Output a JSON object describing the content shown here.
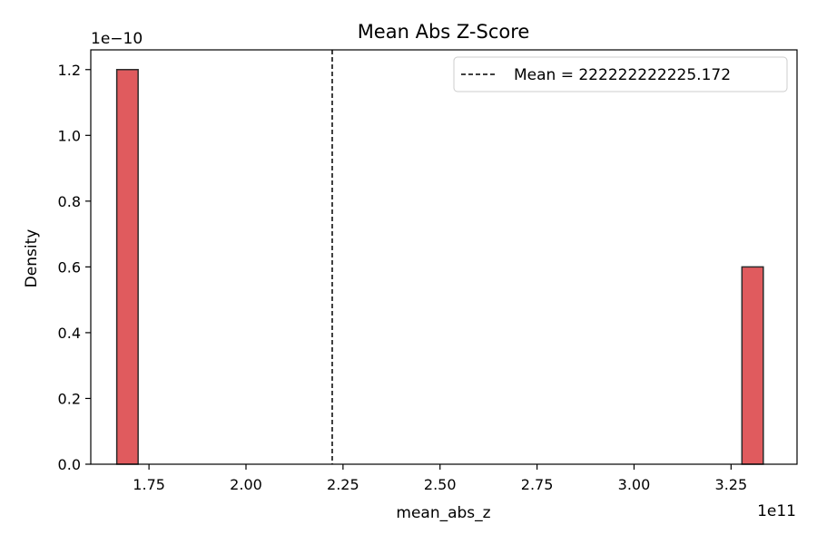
{
  "chart_data": {
    "type": "histogram",
    "title": "Mean Abs Z-Score",
    "xlabel": "mean_abs_z",
    "ylabel": "Density",
    "x_offset_label": "1e11",
    "y_offset_label": "1e−10",
    "xlim": [
      1.6,
      3.42
    ],
    "ylim": [
      0,
      1.26
    ],
    "x_ticks": [
      {
        "value": 1.75,
        "label": "1.75"
      },
      {
        "value": 2.0,
        "label": "2.00"
      },
      {
        "value": 2.25,
        "label": "2.25"
      },
      {
        "value": 2.5,
        "label": "2.50"
      },
      {
        "value": 2.75,
        "label": "2.75"
      },
      {
        "value": 3.0,
        "label": "3.00"
      },
      {
        "value": 3.25,
        "label": "3.25"
      }
    ],
    "y_ticks": [
      {
        "value": 0.0,
        "label": "0.0"
      },
      {
        "value": 0.2,
        "label": "0.2"
      },
      {
        "value": 0.4,
        "label": "0.4"
      },
      {
        "value": 0.6,
        "label": "0.6"
      },
      {
        "value": 0.8,
        "label": "0.8"
      },
      {
        "value": 1.0,
        "label": "1.0"
      },
      {
        "value": 1.2,
        "label": "1.2"
      }
    ],
    "bars": [
      {
        "x0": 1.667,
        "x1": 1.722,
        "density": 1.2
      },
      {
        "x0": 3.278,
        "x1": 3.333,
        "density": 0.6
      }
    ],
    "mean_line": {
      "value": 2.2222,
      "label": "Mean = 222222222225.172"
    },
    "bar_color": "#e05b5e",
    "bar_edge_color": "#2b2b2b",
    "legend_position": "top-right",
    "grid": false
  }
}
